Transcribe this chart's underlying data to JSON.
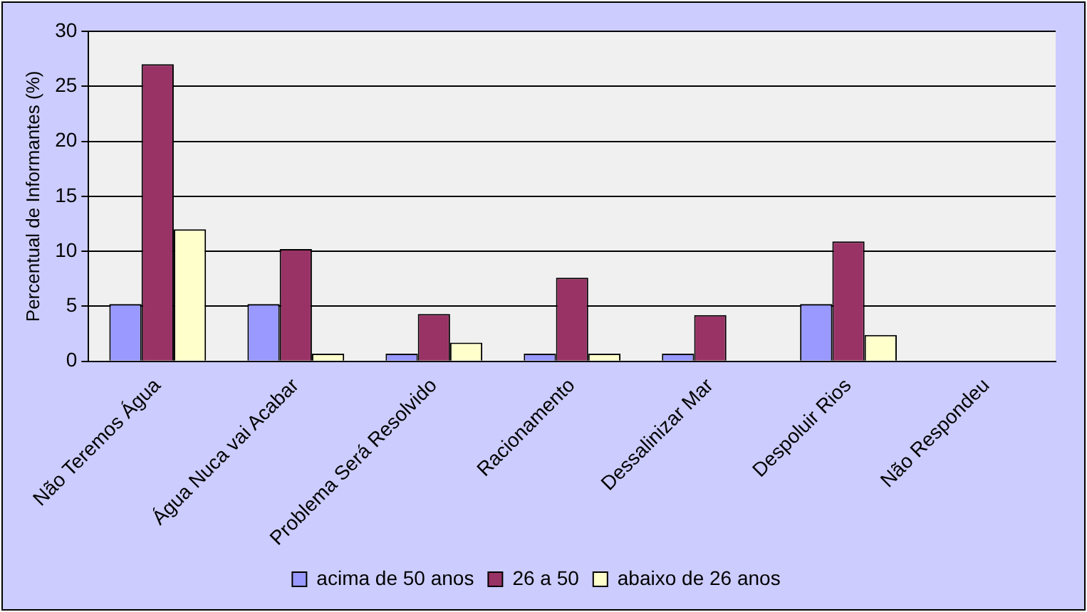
{
  "chart_data": {
    "type": "bar",
    "ylabel": "Percentual de Informantes (%)",
    "categories": [
      "Não Teremos Água",
      "Água Nuca vai Acabar",
      "Problema Será Resolvido",
      "Racionamento",
      "Dessalinizar Mar",
      "Despoluir Rios",
      "Não Respondeu"
    ],
    "series": [
      {
        "name": "acima de 50 anos",
        "color": "#9999ff",
        "values": [
          5.2,
          5.2,
          0.7,
          0.7,
          0.7,
          5.2,
          0
        ]
      },
      {
        "name": "26 a 50",
        "color": "#993366",
        "values": [
          27,
          10.2,
          4.3,
          7.6,
          4.2,
          10.9,
          0
        ]
      },
      {
        "name": "abaixo de 26 anos",
        "color": "#ffffcc",
        "values": [
          12,
          0.7,
          1.7,
          0.7,
          0,
          2.4,
          0
        ]
      }
    ],
    "ylim": [
      0,
      30
    ],
    "yticks": [
      0,
      5,
      10,
      15,
      20,
      25,
      30
    ],
    "grid": "y",
    "legend": "bottom"
  }
}
